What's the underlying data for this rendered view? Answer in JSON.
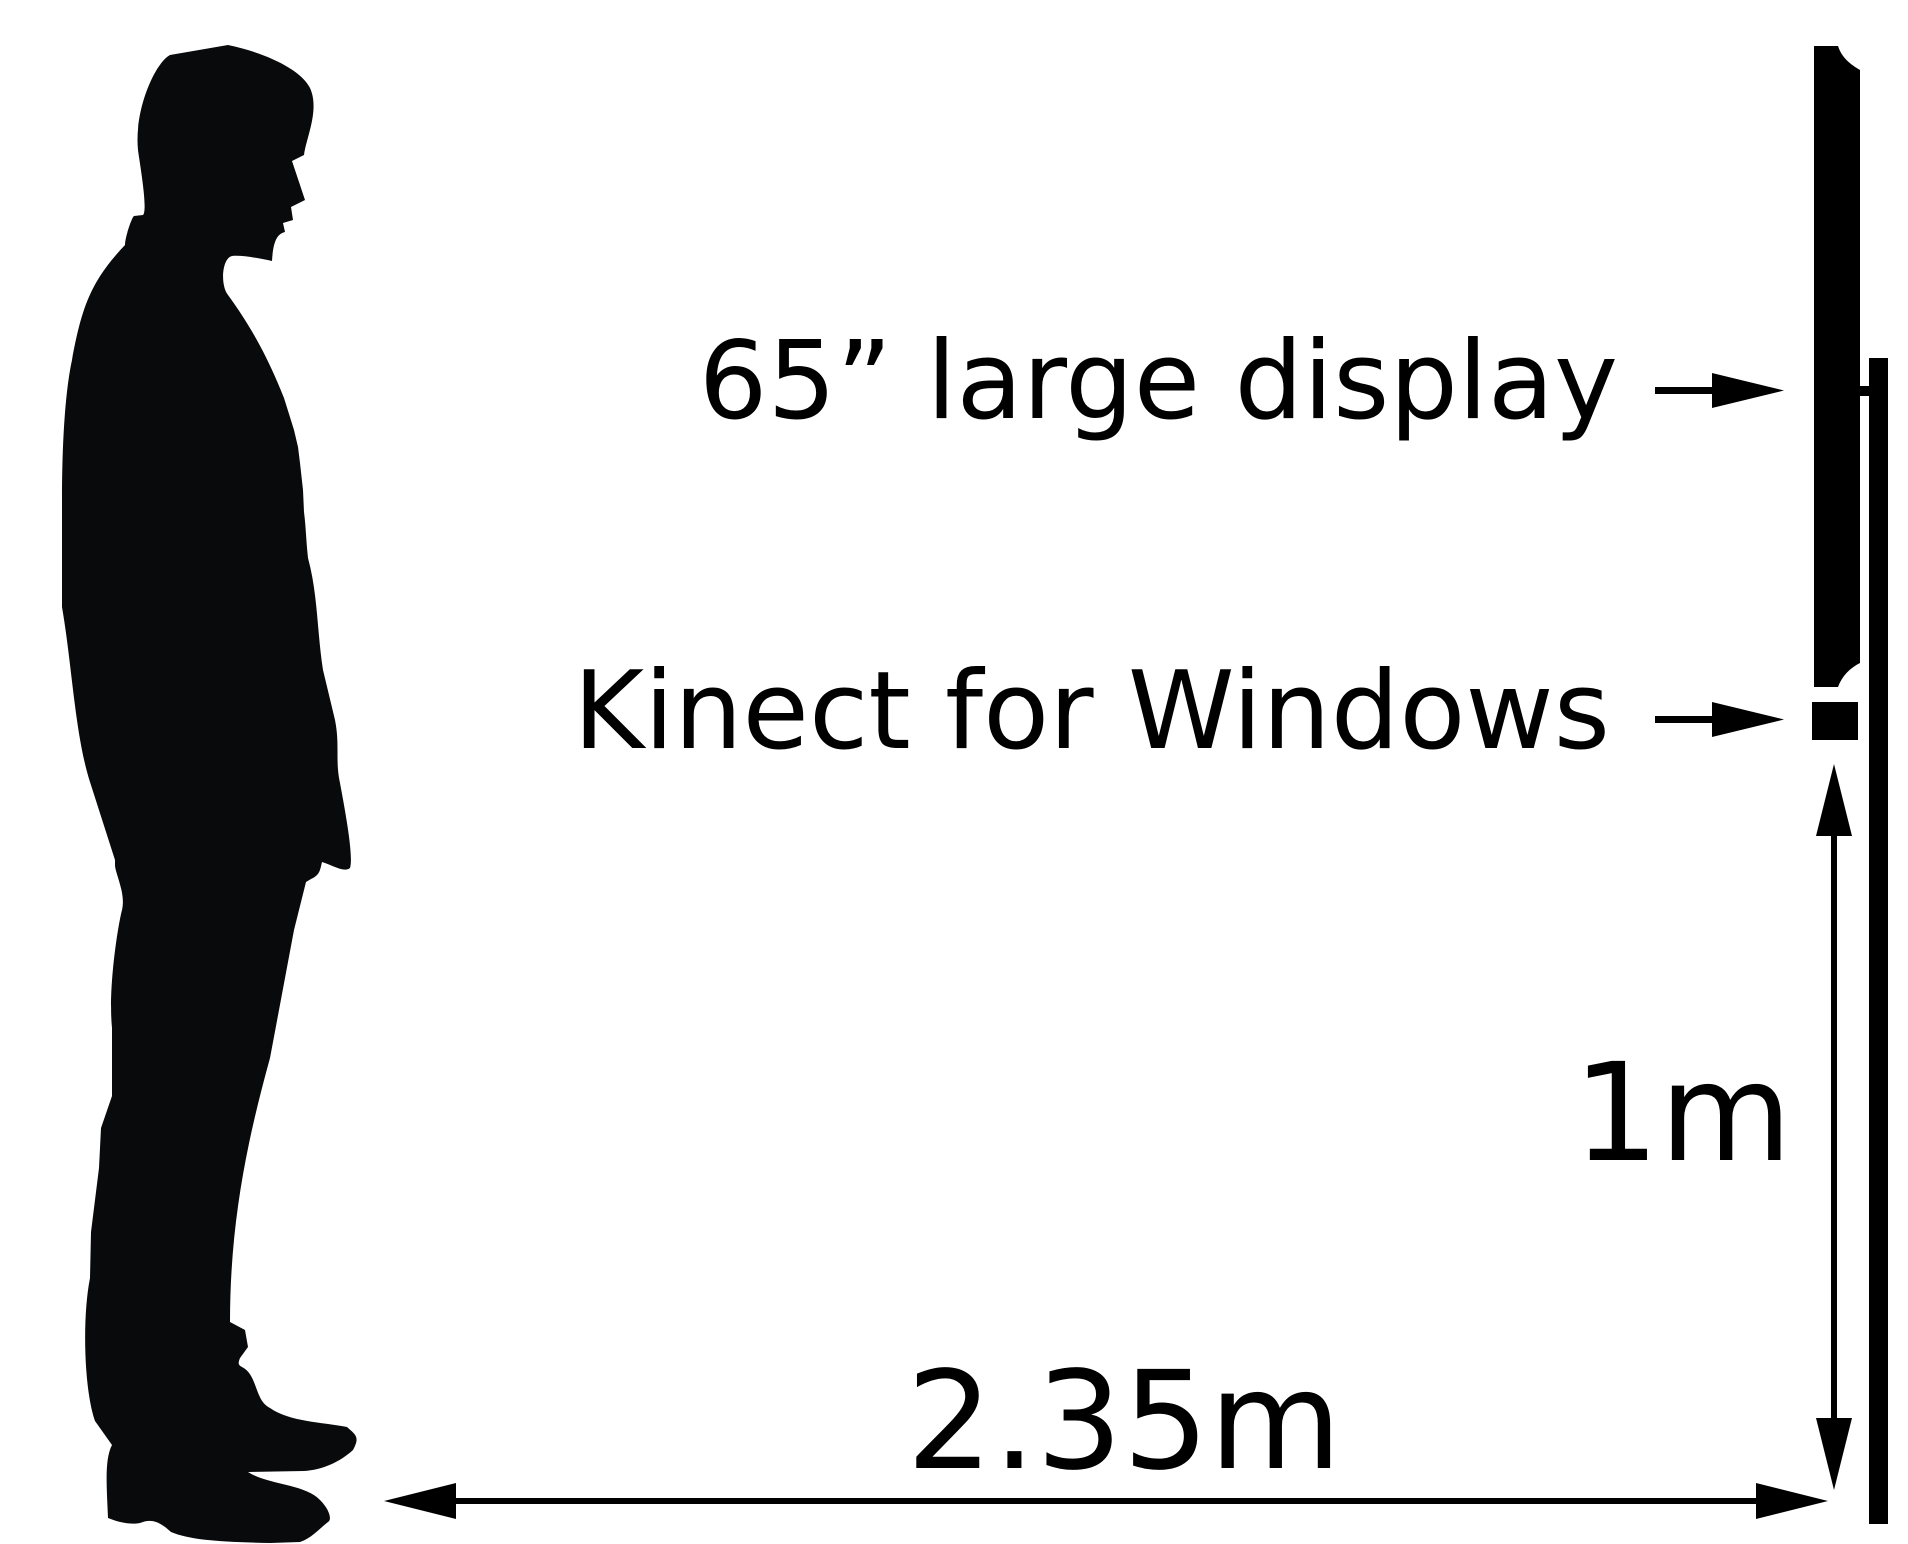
{
  "labels": {
    "display": "65” large display",
    "kinect": "Kinect for Windows",
    "height": "1m",
    "distance": "2.35m"
  },
  "colors": {
    "ink": "#000000",
    "silhouette": "#080a0b",
    "background": "#ffffff"
  },
  "icons": {
    "person": "person-silhouette-icon"
  }
}
